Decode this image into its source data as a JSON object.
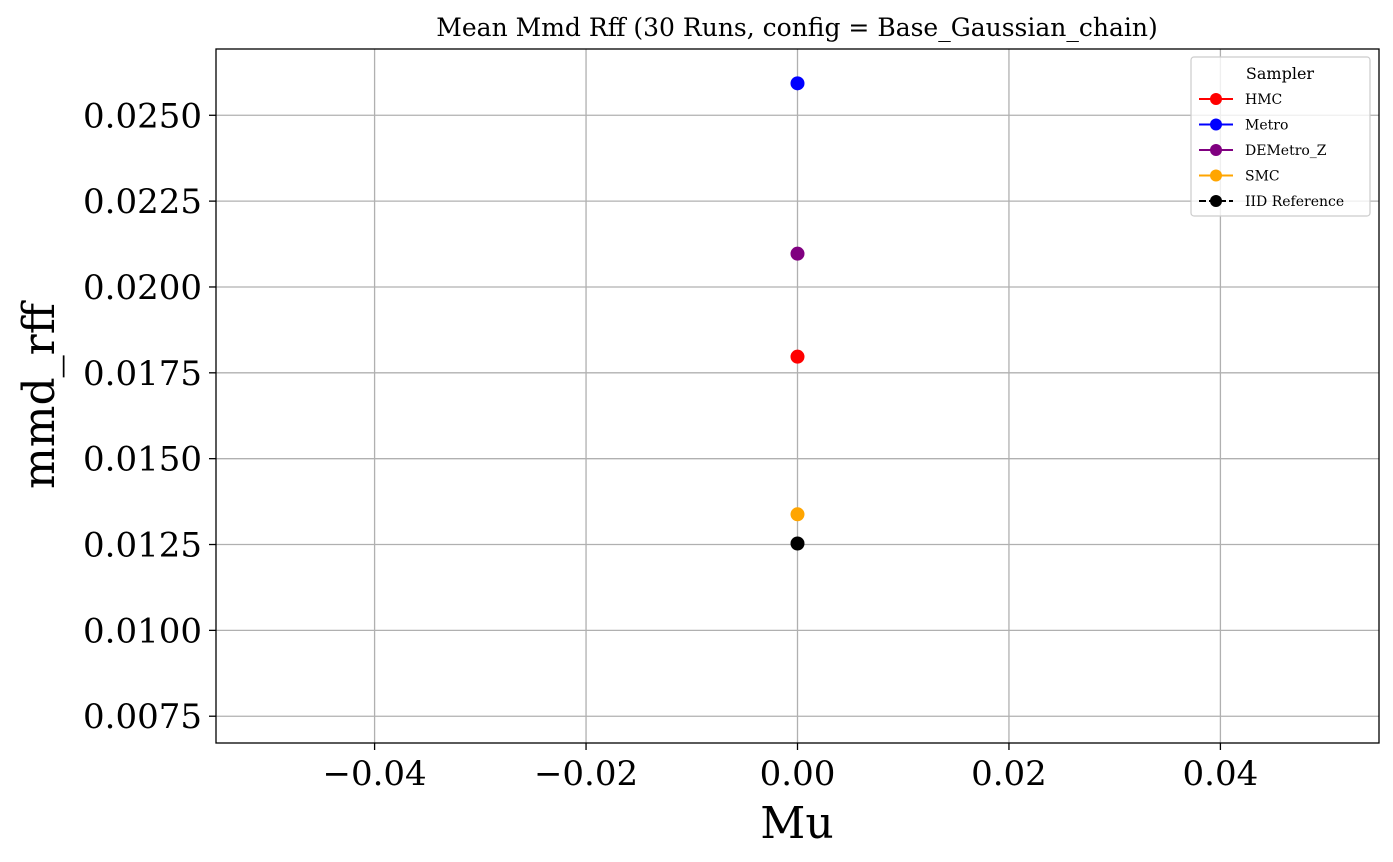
{
  "chart_data": {
    "type": "scatter",
    "title": "Mean Mmd Rff (30 Runs, config = Base_Gaussian_chain)",
    "xlabel": "Mu",
    "ylabel": "mmd_rff",
    "xlim": [
      -0.055,
      0.055
    ],
    "ylim": [
      0.00672,
      0.02693
    ],
    "grid": true,
    "x_ticks": [
      -0.04,
      -0.02,
      0.0,
      0.02,
      0.04
    ],
    "x_tick_labels": [
      "−0.04",
      "−0.02",
      "0.00",
      "0.02",
      "0.04"
    ],
    "y_ticks": [
      0.0075,
      0.01,
      0.0125,
      0.015,
      0.0175,
      0.02,
      0.0225,
      0.025
    ],
    "y_tick_labels": [
      "0.0075",
      "0.0100",
      "0.0125",
      "0.0150",
      "0.0175",
      "0.0200",
      "0.0225",
      "0.0250"
    ],
    "legend": {
      "title": "Sampler",
      "position": "top-right"
    },
    "series": [
      {
        "name": "HMC",
        "color": "#ff0000",
        "line_style": "solid",
        "x": [
          0.0
        ],
        "y": [
          0.01797
        ]
      },
      {
        "name": "Metro",
        "color": "#0000ff",
        "line_style": "solid",
        "x": [
          0.0
        ],
        "y": [
          0.02593
        ]
      },
      {
        "name": "DEMetro_Z",
        "color": "#800080",
        "line_style": "solid",
        "x": [
          0.0
        ],
        "y": [
          0.02097
        ]
      },
      {
        "name": "SMC",
        "color": "#ffa500",
        "line_style": "solid",
        "x": [
          0.0
        ],
        "y": [
          0.01338
        ]
      },
      {
        "name": "IID Reference",
        "color": "#000000",
        "line_style": "dashed",
        "x": [
          0.0
        ],
        "y": [
          0.01253
        ]
      }
    ]
  }
}
